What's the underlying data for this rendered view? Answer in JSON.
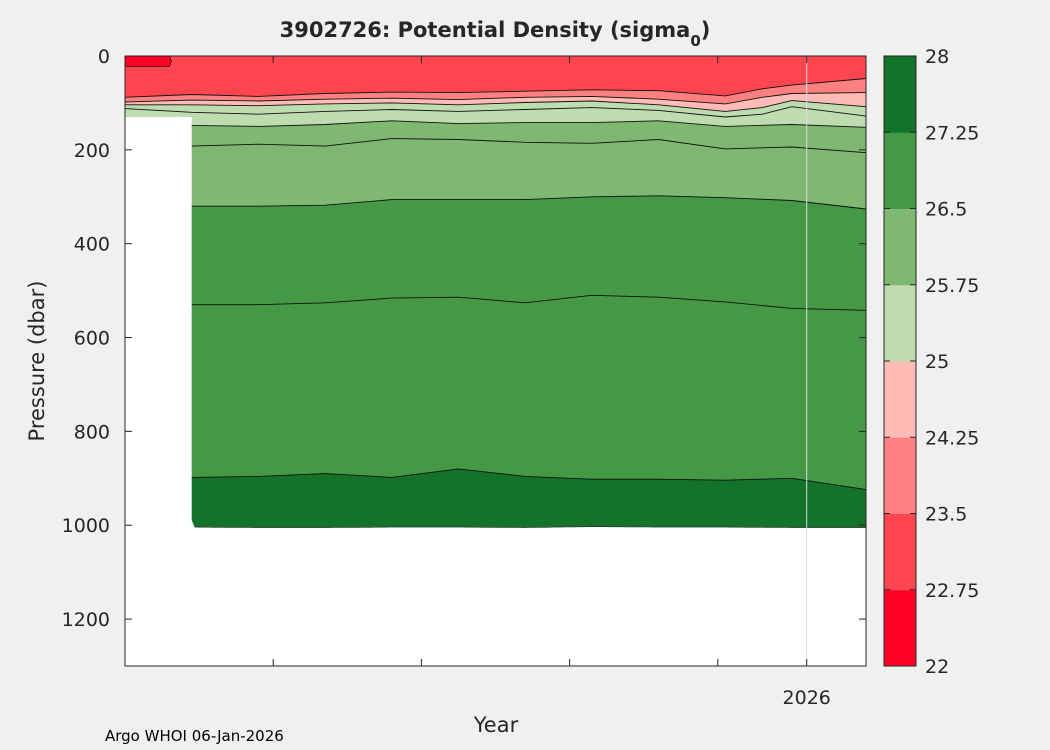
{
  "chart_data": {
    "type": "contourf",
    "title": {
      "prefix": "3902726: Potential Density (sigma",
      "subscript": "0",
      "suffix": ")"
    },
    "xlabel": "Year",
    "ylabel": "Pressure (dbar)",
    "ylim": [
      0,
      1300
    ],
    "y_reversed": true,
    "y_ticks": [
      0,
      200,
      400,
      600,
      800,
      1000,
      1200
    ],
    "x_range": [
      0,
      1
    ],
    "x_ticks": [
      0,
      0.2,
      0.4,
      0.6,
      0.8,
      0.92
    ],
    "x_tick_labels": [
      {
        "x": 0.92,
        "label": "2026"
      }
    ],
    "gridline_x": 0.92,
    "colorbar": {
      "ticks": [
        "22",
        "22.75",
        "23.5",
        "24.25",
        "25",
        "25.75",
        "26.5",
        "27.25",
        "28"
      ],
      "colors": [
        "#ff0026",
        "#ff4650",
        "#ff8080",
        "#ffbbb5",
        "#bfdcb0",
        "#7fb871",
        "#459845",
        "#13732a"
      ]
    },
    "profile_times": [
      0,
      0.09,
      0.18,
      0.27,
      0.36,
      0.45,
      0.54,
      0.63,
      0.72,
      0.81,
      0.9,
      1
    ],
    "bottom_pressure": [
      130,
      1004,
      1005,
      1005,
      1004,
      1004,
      1005,
      1003,
      1004,
      1004,
      1005,
      1005
    ],
    "isopycnals": [
      {
        "level": "22.75",
        "x": [
          0,
          0.06
        ],
        "p": [
          22,
          22
        ]
      },
      {
        "level": "23.5",
        "x": [
          0,
          0.09,
          0.18,
          0.27,
          0.36,
          0.45,
          0.54,
          0.63,
          0.72,
          0.81,
          0.86,
          0.9,
          1
        ],
        "p": [
          88,
          82,
          86,
          80,
          77,
          78,
          75,
          72,
          74,
          85,
          70,
          62,
          48
        ]
      },
      {
        "level": "24.25",
        "x": [
          0,
          0.09,
          0.18,
          0.27,
          0.36,
          0.45,
          0.54,
          0.63,
          0.72,
          0.81,
          0.86,
          0.9,
          1
        ],
        "p": [
          98,
          94,
          96,
          92,
          90,
          93,
          88,
          86,
          92,
          102,
          88,
          80,
          78
        ]
      },
      {
        "level": "25",
        "x": [
          0,
          0.09,
          0.18,
          0.27,
          0.36,
          0.45,
          0.54,
          0.63,
          0.72,
          0.81,
          0.86,
          0.9,
          1
        ],
        "p": [
          104,
          104,
          106,
          102,
          100,
          104,
          99,
          96,
          104,
          118,
          110,
          95,
          108
        ]
      },
      {
        "level": "25.75",
        "x": [
          0,
          0.09,
          0.18,
          0.27,
          0.36,
          0.45,
          0.54,
          0.63,
          0.72,
          0.81,
          0.86,
          0.9,
          1
        ],
        "p": [
          112,
          120,
          124,
          118,
          114,
          118,
          114,
          110,
          116,
          130,
          124,
          108,
          128
        ]
      },
      {
        "level": "26.5",
        "x": [
          0.09,
          0.18,
          0.27,
          0.36,
          0.45,
          0.54,
          0.63,
          0.72,
          0.81,
          0.9,
          1
        ],
        "p": [
          148,
          150,
          146,
          138,
          144,
          142,
          142,
          138,
          150,
          146,
          152
        ]
      },
      {
        "level": "27.25a",
        "x": [
          0.09,
          0.18,
          0.27,
          0.36,
          0.45,
          0.54,
          0.63,
          0.72,
          0.81,
          0.9,
          1
        ],
        "p": [
          192,
          188,
          192,
          176,
          178,
          184,
          186,
          178,
          198,
          194,
          206
        ]
      },
      {
        "level": "27.25b",
        "x": [
          0.09,
          0.18,
          0.27,
          0.36,
          0.45,
          0.54,
          0.63,
          0.72,
          0.81,
          0.9,
          1
        ],
        "p": [
          320,
          320,
          318,
          306,
          306,
          306,
          300,
          298,
          302,
          308,
          326
        ]
      },
      {
        "level": "27.25c",
        "x": [
          0.09,
          0.18,
          0.27,
          0.36,
          0.45,
          0.54,
          0.63,
          0.72,
          0.81,
          0.9,
          1
        ],
        "p": [
          530,
          530,
          526,
          516,
          514,
          526,
          510,
          514,
          524,
          538,
          542
        ]
      },
      {
        "level": "28",
        "x": [
          0.09,
          0.18,
          0.27,
          0.36,
          0.45,
          0.54,
          0.63,
          0.72,
          0.81,
          0.9,
          1
        ],
        "p": [
          898,
          896,
          890,
          898,
          880,
          896,
          902,
          902,
          904,
          900,
          924
        ]
      }
    ],
    "bands": [
      {
        "color": "#ff4650",
        "top": "surface",
        "bottom": "23.5"
      },
      {
        "color": "#ff8080",
        "top": "23.5",
        "bottom": "24.25"
      },
      {
        "color": "#ffbbb5",
        "top": "24.25",
        "bottom": "25"
      },
      {
        "color": "#bfdcb0",
        "top": "25",
        "bottom": "26.5"
      },
      {
        "color": "#7fb871",
        "top": "26.5",
        "bottom": "27.25b"
      },
      {
        "color": "#459845",
        "top": "27.25b",
        "bottom": "28"
      },
      {
        "color": "#13732a",
        "top": "28",
        "bottom": "bottom"
      }
    ]
  },
  "footer": {
    "text": "Argo WHOI 06-Jan-2026"
  }
}
